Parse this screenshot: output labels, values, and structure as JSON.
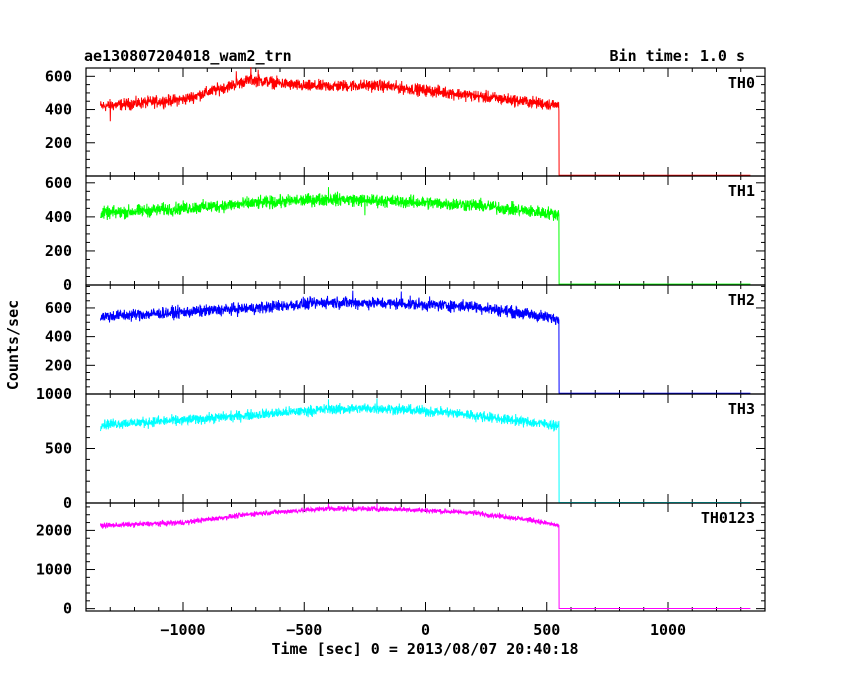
{
  "title": "ae130807204018_wam2_trn",
  "bin_time": "Bin time: 1.0 s",
  "ylabel": "Counts/sec",
  "xlabel": "Time [sec] 0 = 2013/08/07 20:40:18",
  "chart_data": {
    "type": "line",
    "xlim": [
      -1400,
      1400
    ],
    "x_ticks": [
      {
        "value": -1000,
        "label": "−1000"
      },
      {
        "value": -500,
        "label": "−500"
      },
      {
        "value": 0,
        "label": "0"
      },
      {
        "value": 500,
        "label": "500"
      },
      {
        "value": 1000,
        "label": "1000"
      }
    ],
    "data_range": [
      -1340,
      1340
    ],
    "drop_at": 550,
    "panels": [
      {
        "name": "TH0",
        "color": "#ff0000",
        "ylim": [
          0,
          650
        ],
        "ticks": [
          200,
          400,
          600
        ],
        "profile": [
          [
            -1340,
            420
          ],
          [
            -1000,
            460
          ],
          [
            -720,
            580
          ],
          [
            -500,
            540
          ],
          [
            -200,
            545
          ],
          [
            100,
            500
          ],
          [
            400,
            450
          ],
          [
            550,
            425
          ],
          [
            551,
            5
          ],
          [
            1340,
            5
          ]
        ],
        "noise": 30,
        "spikes": [
          [
            -720,
            655
          ],
          [
            -690,
            640
          ],
          [
            -780,
            630
          ],
          [
            -1300,
            330
          ]
        ]
      },
      {
        "name": "TH1",
        "color": "#00ff00",
        "ylim": [
          0,
          640
        ],
        "ticks": [
          0,
          200,
          400,
          600
        ],
        "profile": [
          [
            -1340,
            420
          ],
          [
            -1000,
            450
          ],
          [
            -700,
            480
          ],
          [
            -400,
            505
          ],
          [
            -100,
            490
          ],
          [
            200,
            470
          ],
          [
            450,
            430
          ],
          [
            550,
            415
          ],
          [
            551,
            5
          ],
          [
            1340,
            5
          ]
        ],
        "noise": 32,
        "spikes": [
          [
            -400,
            575
          ],
          [
            -250,
            410
          ]
        ]
      },
      {
        "name": "TH2",
        "color": "#0000ff",
        "ylim": [
          0,
          760
        ],
        "ticks": [
          200,
          400,
          600
        ],
        "profile": [
          [
            -1340,
            540
          ],
          [
            -1000,
            570
          ],
          [
            -700,
            600
          ],
          [
            -400,
            640
          ],
          [
            -100,
            630
          ],
          [
            200,
            610
          ],
          [
            450,
            550
          ],
          [
            550,
            520
          ],
          [
            551,
            5
          ],
          [
            1340,
            5
          ]
        ],
        "noise": 35,
        "spikes": [
          [
            -300,
            720
          ],
          [
            -100,
            715
          ]
        ]
      },
      {
        "name": "TH3",
        "color": "#00ffff",
        "ylim": [
          0,
          1000
        ],
        "ticks": [
          0,
          500,
          1000
        ],
        "profile": [
          [
            -1340,
            720
          ],
          [
            -1000,
            760
          ],
          [
            -700,
            810
          ],
          [
            -400,
            860
          ],
          [
            -200,
            870
          ],
          [
            100,
            830
          ],
          [
            400,
            750
          ],
          [
            550,
            710
          ],
          [
            551,
            5
          ],
          [
            1340,
            5
          ]
        ],
        "noise": 40,
        "spikes": [
          [
            -400,
            950
          ],
          [
            -200,
            960
          ]
        ]
      },
      {
        "name": "TH0123",
        "color": "#ff00ff",
        "ylim": [
          -60,
          2700
        ],
        "ticks": [
          0,
          1000,
          2000
        ],
        "profile": [
          [
            -1340,
            2120
          ],
          [
            -1000,
            2200
          ],
          [
            -700,
            2430
          ],
          [
            -400,
            2560
          ],
          [
            -100,
            2540
          ],
          [
            200,
            2450
          ],
          [
            450,
            2250
          ],
          [
            550,
            2120
          ],
          [
            551,
            5
          ],
          [
            1340,
            5
          ]
        ],
        "noise": 55,
        "spikes": [
          [
            -400,
            2680
          ],
          [
            -200,
            2690
          ]
        ]
      }
    ]
  }
}
